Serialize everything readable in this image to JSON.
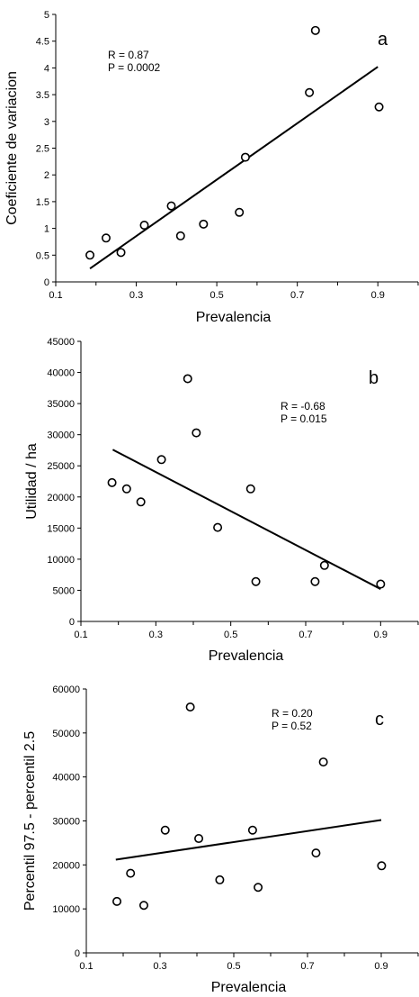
{
  "chart_data": [
    {
      "type": "scatter",
      "panel_label": "a",
      "xlabel": "Prevalencia",
      "ylabel": "Coeficiente de variacion",
      "xlim": [
        0.1,
        1.0
      ],
      "ylim": [
        0,
        5
      ],
      "x_ticks": [
        "0.1",
        "0.3",
        "0.5",
        "0.7",
        "0.9"
      ],
      "y_ticks": [
        "0",
        "0.5",
        "1",
        "1.5",
        "2",
        "2.5",
        "3",
        "3.5",
        "4",
        "4.5",
        "5"
      ],
      "annotation": {
        "r": "R = 0.87",
        "p": "P = 0.0002"
      },
      "points": [
        {
          "x": 0.185,
          "y": 0.5
        },
        {
          "x": 0.225,
          "y": 0.82
        },
        {
          "x": 0.262,
          "y": 0.55
        },
        {
          "x": 0.32,
          "y": 1.06
        },
        {
          "x": 0.387,
          "y": 1.42
        },
        {
          "x": 0.41,
          "y": 0.86
        },
        {
          "x": 0.467,
          "y": 1.08
        },
        {
          "x": 0.556,
          "y": 1.3
        },
        {
          "x": 0.571,
          "y": 2.33
        },
        {
          "x": 0.73,
          "y": 3.54
        },
        {
          "x": 0.745,
          "y": 4.7
        },
        {
          "x": 0.903,
          "y": 3.27
        }
      ],
      "trendline": [
        [
          0.185,
          0.25
        ],
        [
          0.9,
          4.02
        ]
      ]
    },
    {
      "type": "scatter",
      "panel_label": "b",
      "xlabel": "Prevalencia",
      "ylabel": "Utilidad / ha",
      "xlim": [
        0.1,
        1.0
      ],
      "ylim": [
        0,
        45000
      ],
      "x_ticks": [
        "0.1",
        "0.3",
        "0.5",
        "0.7",
        "0.9"
      ],
      "y_ticks": [
        "0",
        "5000",
        "10000",
        "15000",
        "20000",
        "25000",
        "30000",
        "35000",
        "40000",
        "45000"
      ],
      "annotation": {
        "r": "R = -0.68",
        "p": "P = 0.015"
      },
      "points": [
        {
          "x": 0.183,
          "y": 22300
        },
        {
          "x": 0.222,
          "y": 21300
        },
        {
          "x": 0.26,
          "y": 19200
        },
        {
          "x": 0.315,
          "y": 26000
        },
        {
          "x": 0.385,
          "y": 39000
        },
        {
          "x": 0.408,
          "y": 30300
        },
        {
          "x": 0.465,
          "y": 15100
        },
        {
          "x": 0.553,
          "y": 21300
        },
        {
          "x": 0.567,
          "y": 6400
        },
        {
          "x": 0.725,
          "y": 6400
        },
        {
          "x": 0.75,
          "y": 9000
        },
        {
          "x": 0.9,
          "y": 6000
        }
      ],
      "trendline": [
        [
          0.185,
          27600
        ],
        [
          0.9,
          5200
        ]
      ]
    },
    {
      "type": "scatter",
      "panel_label": "c",
      "xlabel": "Prevalencia",
      "ylabel": "Percentil 97.5 - percentil 2.5",
      "xlim": [
        0.1,
        1.0
      ],
      "ylim": [
        0,
        60000
      ],
      "x_ticks": [
        "0.1",
        "0.3",
        "0.5",
        "0.7",
        "0.9"
      ],
      "y_ticks": [
        "0",
        "10000",
        "20000",
        "30000",
        "40000",
        "50000",
        "60000"
      ],
      "annotation": {
        "r": "R = 0.20",
        "p": "P = 0.52"
      },
      "points": [
        {
          "x": 0.183,
          "y": 11700
        },
        {
          "x": 0.22,
          "y": 18100
        },
        {
          "x": 0.256,
          "y": 10800
        },
        {
          "x": 0.314,
          "y": 27900
        },
        {
          "x": 0.382,
          "y": 55900
        },
        {
          "x": 0.405,
          "y": 26000
        },
        {
          "x": 0.462,
          "y": 16600
        },
        {
          "x": 0.551,
          "y": 27900
        },
        {
          "x": 0.566,
          "y": 14900
        },
        {
          "x": 0.723,
          "y": 22700
        },
        {
          "x": 0.743,
          "y": 43400
        },
        {
          "x": 0.901,
          "y": 19800
        }
      ],
      "trendline": [
        [
          0.18,
          21200
        ],
        [
          0.9,
          30200
        ]
      ]
    }
  ]
}
